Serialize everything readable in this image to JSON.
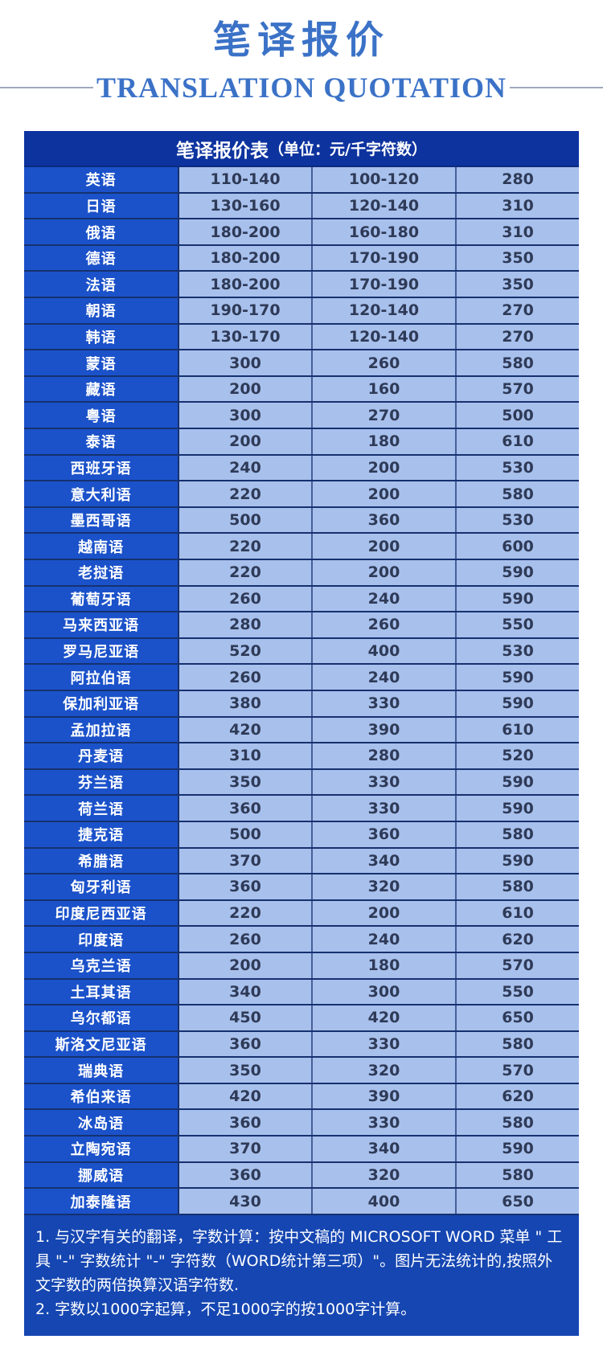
{
  "header": {
    "title": "笔译报价",
    "subtitle": "TRANSLATION QUOTATION"
  },
  "table": {
    "title": "笔译报价表",
    "unit_label": "（单位：元/千字符数）",
    "rows": [
      {
        "language": "英语",
        "prices": [
          "110-140",
          "100-120",
          "280"
        ]
      },
      {
        "language": "日语",
        "prices": [
          "130-160",
          "120-140",
          "310"
        ]
      },
      {
        "language": "俄语",
        "prices": [
          "180-200",
          "160-180",
          "310"
        ]
      },
      {
        "language": "德语",
        "prices": [
          "180-200",
          "170-190",
          "350"
        ]
      },
      {
        "language": "法语",
        "prices": [
          "180-200",
          "170-190",
          "350"
        ]
      },
      {
        "language": "朝语",
        "prices": [
          "190-170",
          "120-140",
          "270"
        ]
      },
      {
        "language": "韩语",
        "prices": [
          "130-170",
          "120-140",
          "270"
        ]
      },
      {
        "language": "蒙语",
        "prices": [
          "300",
          "260",
          "580"
        ]
      },
      {
        "language": "藏语",
        "prices": [
          "200",
          "160",
          "570"
        ]
      },
      {
        "language": "粤语",
        "prices": [
          "300",
          "270",
          "500"
        ]
      },
      {
        "language": "泰语",
        "prices": [
          "200",
          "180",
          "610"
        ]
      },
      {
        "language": "西班牙语",
        "prices": [
          "240",
          "200",
          "530"
        ]
      },
      {
        "language": "意大利语",
        "prices": [
          "220",
          "200",
          "580"
        ]
      },
      {
        "language": "墨西哥语",
        "prices": [
          "500",
          "360",
          "530"
        ]
      },
      {
        "language": "越南语",
        "prices": [
          "220",
          "200",
          "600"
        ]
      },
      {
        "language": "老挝语",
        "prices": [
          "220",
          "200",
          "590"
        ]
      },
      {
        "language": "葡萄牙语",
        "prices": [
          "260",
          "240",
          "590"
        ]
      },
      {
        "language": "马来西亚语",
        "prices": [
          "280",
          "260",
          "550"
        ]
      },
      {
        "language": "罗马尼亚语",
        "prices": [
          "520",
          "400",
          "530"
        ]
      },
      {
        "language": "阿拉伯语",
        "prices": [
          "260",
          "240",
          "590"
        ]
      },
      {
        "language": "保加利亚语",
        "prices": [
          "380",
          "330",
          "590"
        ]
      },
      {
        "language": "孟加拉语",
        "prices": [
          "420",
          "390",
          "610"
        ]
      },
      {
        "language": "丹麦语",
        "prices": [
          "310",
          "280",
          "520"
        ]
      },
      {
        "language": "芬兰语",
        "prices": [
          "350",
          "330",
          "590"
        ]
      },
      {
        "language": "荷兰语",
        "prices": [
          "360",
          "330",
          "590"
        ]
      },
      {
        "language": "捷克语",
        "prices": [
          "500",
          "360",
          "580"
        ]
      },
      {
        "language": "希腊语",
        "prices": [
          "370",
          "340",
          "590"
        ]
      },
      {
        "language": "匈牙利语",
        "prices": [
          "360",
          "320",
          "580"
        ]
      },
      {
        "language": "印度尼西亚语",
        "prices": [
          "220",
          "200",
          "610"
        ]
      },
      {
        "language": "印度语",
        "prices": [
          "260",
          "240",
          "620"
        ]
      },
      {
        "language": "乌克兰语",
        "prices": [
          "200",
          "180",
          "570"
        ]
      },
      {
        "language": "土耳其语",
        "prices": [
          "340",
          "300",
          "550"
        ]
      },
      {
        "language": "乌尔都语",
        "prices": [
          "450",
          "420",
          "650"
        ]
      },
      {
        "language": "斯洛文尼亚语",
        "prices": [
          "360",
          "330",
          "580"
        ]
      },
      {
        "language": "瑞典语",
        "prices": [
          "350",
          "320",
          "570"
        ]
      },
      {
        "language": "希伯来语",
        "prices": [
          "420",
          "390",
          "620"
        ]
      },
      {
        "language": "冰岛语",
        "prices": [
          "360",
          "330",
          "580"
        ]
      },
      {
        "language": "立陶宛语",
        "prices": [
          "370",
          "340",
          "590"
        ]
      },
      {
        "language": "挪威语",
        "prices": [
          "360",
          "320",
          "580"
        ]
      },
      {
        "language": "加泰隆语",
        "prices": [
          "430",
          "400",
          "650"
        ]
      }
    ]
  },
  "notes": [
    "1. 与汉字有关的翻译，字数计算：按中文稿的 MICROSOFT WORD 菜单 \" 工具 \"-\" 字数统计 \"-\" 字符数（WORD统计第三项）\"。图片无法统计的,按照外文字数的两倍换算汉语字符数.",
    "2. 字数以1000字起算，不足1000字的按1000字计算。"
  ],
  "colors": {
    "title_blue": "#3b72c7",
    "header_navy": "#0d339f",
    "language_cell_blue": "#1b52ca",
    "price_cell_blue": "#a8c0ec",
    "price_text": "#2e3a57",
    "notes_bg": "#1546b2",
    "divider_gray": "#9fa9bd"
  }
}
